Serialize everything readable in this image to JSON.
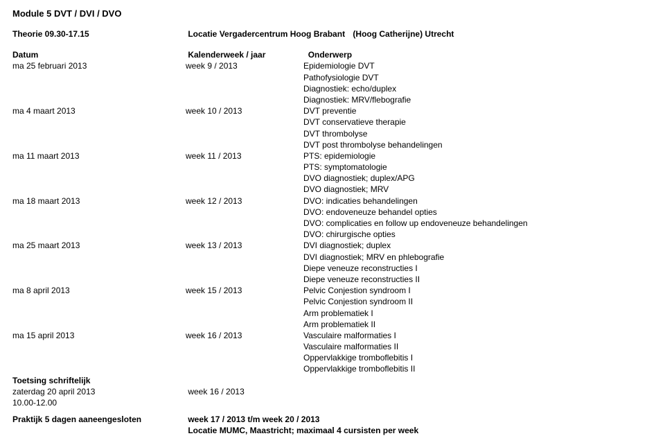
{
  "module_title": "Module 5 DVT / DVI / DVO",
  "theorie": {
    "label": "Theorie 09.30-17.15",
    "locatie": "Locatie Vergadercentrum Hoog Brabant",
    "plaats": "(Hoog Catherijne) Utrecht"
  },
  "headers": {
    "datum": "Datum",
    "week": "Kalenderweek / jaar",
    "onderwerp": "Onderwerp"
  },
  "rows": [
    {
      "datum": "ma 25 februari 2013",
      "week": "week 9 / 2013",
      "topics": [
        "Epidemiologie DVT",
        "Pathofysiologie DVT",
        "Diagnostiek: echo/duplex",
        "Diagnostiek: MRV/flebografie"
      ]
    },
    {
      "datum": "ma 4 maart 2013",
      "week": "week 10 / 2013",
      "topics": [
        "DVT preventie",
        "DVT conservatieve therapie",
        "DVT thrombolyse",
        "DVT post thrombolyse behandelingen"
      ]
    },
    {
      "datum": "ma 11 maart 2013",
      "week": "week 11 / 2013",
      "topics": [
        "PTS: epidemiologie",
        "PTS: symptomatologie",
        "DVO diagnostiek; duplex/APG",
        "DVO diagnostiek; MRV"
      ]
    },
    {
      "datum": "ma 18 maart 2013",
      "week": "week 12 / 2013",
      "topics": [
        "DVO: indicaties behandelingen",
        "DVO: endoveneuze behandel opties",
        "DVO: complicaties en follow up endoveneuze behandelingen",
        "DVO: chirurgische opties"
      ]
    },
    {
      "datum": "ma 25 maart 2013",
      "week": "week 13 / 2013",
      "topics": [
        "DVI diagnostiek; duplex",
        "DVI diagnostiek; MRV en phlebografie",
        "Diepe veneuze reconstructies I",
        "Diepe veneuze reconstructies II"
      ]
    },
    {
      "datum": "ma 8 april 2013",
      "week": "week 15 / 2013",
      "topics": [
        "Pelvic Conjestion syndroom I",
        "Pelvic Conjestion syndroom II",
        "Arm problematiek I",
        "Arm problematiek II"
      ]
    },
    {
      "datum": "ma 15 april 2013",
      "week": "week 16 / 2013",
      "topics": [
        "Vasculaire malformaties I",
        "Vasculaire malformaties II",
        "Oppervlakkige tromboflebitis I",
        "Oppervlakkige tromboflebitis II"
      ]
    }
  ],
  "toetsing": {
    "heading": "Toetsing schriftelijk",
    "datum": "zaterdag 20 april 2013",
    "tijd": "10.00-12.00",
    "week": "week 16 / 2013"
  },
  "praktijk": {
    "label": "Praktijk 5 dagen aaneengesloten",
    "week": "week 17 / 2013  t/m week 20 / 2013",
    "locatie": "Locatie MUMC, Maastricht; maximaal 4 cursisten per week"
  }
}
